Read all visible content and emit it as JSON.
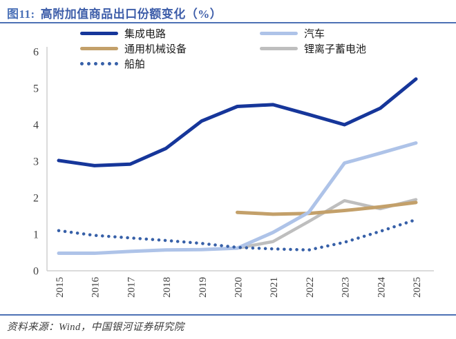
{
  "header": {
    "figure_label": "图11:",
    "title": "高附加值商品出口份额变化（%）"
  },
  "footer": {
    "source": "资料来源：Wind，中国银河证券研究院"
  },
  "colors": {
    "accent_rule": "#4C70B4",
    "figure_label_blue": "#4C72B8",
    "title_blue": "#3D5DA9",
    "axis_line": "#CFCFCF",
    "tick_label": "#404040"
  },
  "chart_data": {
    "type": "line",
    "title": "高附加值商品出口份额变化（%）",
    "xlabel": "",
    "ylabel": "",
    "x": [
      2015,
      2016,
      2017,
      2018,
      2019,
      2020,
      2021,
      2022,
      2023,
      2024,
      2025
    ],
    "ylim": [
      0,
      6
    ],
    "y_ticks": [
      0,
      1,
      2,
      3,
      4,
      5,
      6
    ],
    "grid": false,
    "legend_position": "top",
    "series": [
      {
        "id": "integrated-circuits",
        "name": "集成电路",
        "color": "#16369A",
        "style": "solid",
        "width": 5,
        "values": [
          3.02,
          2.88,
          2.92,
          3.35,
          4.1,
          4.5,
          4.55,
          4.28,
          4.0,
          4.45,
          5.25
        ]
      },
      {
        "id": "automobiles",
        "name": "汽车",
        "color": "#AEC3E8",
        "style": "solid",
        "width": 5,
        "values": [
          0.48,
          0.48,
          0.53,
          0.57,
          0.58,
          0.62,
          1.05,
          1.6,
          2.95,
          3.22,
          3.5
        ]
      },
      {
        "id": "general-machinery",
        "name": "通用机械设备",
        "color": "#C3A06A",
        "style": "solid",
        "width": 5,
        "values": [
          null,
          null,
          null,
          null,
          null,
          1.6,
          1.55,
          1.57,
          1.65,
          1.75,
          1.87
        ]
      },
      {
        "id": "lithium-ion-battery",
        "name": "锂离子蓄电池",
        "color": "#BEBEBE",
        "style": "solid",
        "width": 4.5,
        "values": [
          null,
          null,
          null,
          null,
          null,
          0.62,
          0.8,
          1.35,
          1.92,
          1.7,
          1.95
        ]
      },
      {
        "id": "ships",
        "name": "船舶",
        "color": "#3760A8",
        "style": "dotted",
        "width": 4.5,
        "values": [
          1.1,
          0.97,
          0.9,
          0.83,
          0.75,
          0.64,
          0.6,
          0.57,
          0.78,
          1.08,
          1.4
        ]
      }
    ]
  }
}
